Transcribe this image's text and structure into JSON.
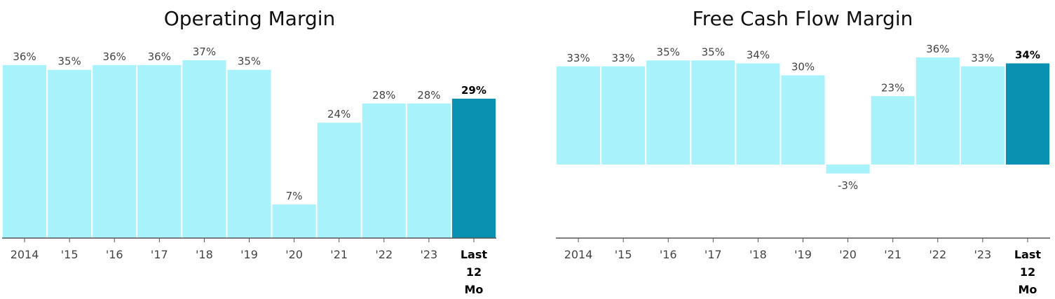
{
  "colors": {
    "bar": "#a8f2fb",
    "highlight": "#0a91b1",
    "axis": "#555555",
    "label": "#444444",
    "title": "#111111"
  },
  "chart_data": [
    {
      "type": "bar",
      "title": "Operating Margin",
      "categories": [
        "2014",
        "'15",
        "'16",
        "'17",
        "'18",
        "'19",
        "'20",
        "'21",
        "'22",
        "'23",
        "Last 12 Mo"
      ],
      "category_lines": [
        [
          "2014"
        ],
        [
          "'15"
        ],
        [
          "'16"
        ],
        [
          "'17"
        ],
        [
          "'18"
        ],
        [
          "'19"
        ],
        [
          "'20"
        ],
        [
          "'21"
        ],
        [
          "'22"
        ],
        [
          "'23"
        ],
        [
          "Last",
          "12",
          "Mo"
        ]
      ],
      "values": [
        36,
        35,
        36,
        36,
        37,
        35,
        7,
        24,
        28,
        28,
        29
      ],
      "value_labels": [
        "36%",
        "35%",
        "36%",
        "36%",
        "37%",
        "35%",
        "7%",
        "24%",
        "28%",
        "28%",
        "29%"
      ],
      "highlight_index": 10,
      "ylim": [
        0,
        37
      ],
      "grid": false,
      "legend": "none",
      "xlabel": "",
      "ylabel": ""
    },
    {
      "type": "bar",
      "title": "Free Cash Flow Margin",
      "categories": [
        "2014",
        "'15",
        "'16",
        "'17",
        "'18",
        "'19",
        "'20",
        "'21",
        "'22",
        "'23",
        "Last 12 Mo"
      ],
      "category_lines": [
        [
          "2014"
        ],
        [
          "'15"
        ],
        [
          "'16"
        ],
        [
          "'17"
        ],
        [
          "'18"
        ],
        [
          "'19"
        ],
        [
          "'20"
        ],
        [
          "'21"
        ],
        [
          "'22"
        ],
        [
          "'23"
        ],
        [
          "Last",
          "12",
          "Mo"
        ]
      ],
      "values": [
        33,
        33,
        35,
        35,
        34,
        30,
        -3,
        23,
        36,
        33,
        34
      ],
      "value_labels": [
        "33%",
        "33%",
        "35%",
        "35%",
        "34%",
        "30%",
        "-3%",
        "23%",
        "36%",
        "33%",
        "34%"
      ],
      "highlight_index": 10,
      "ylim": [
        -25,
        36
      ],
      "grid": false,
      "legend": "none",
      "xlabel": "",
      "ylabel": ""
    }
  ]
}
